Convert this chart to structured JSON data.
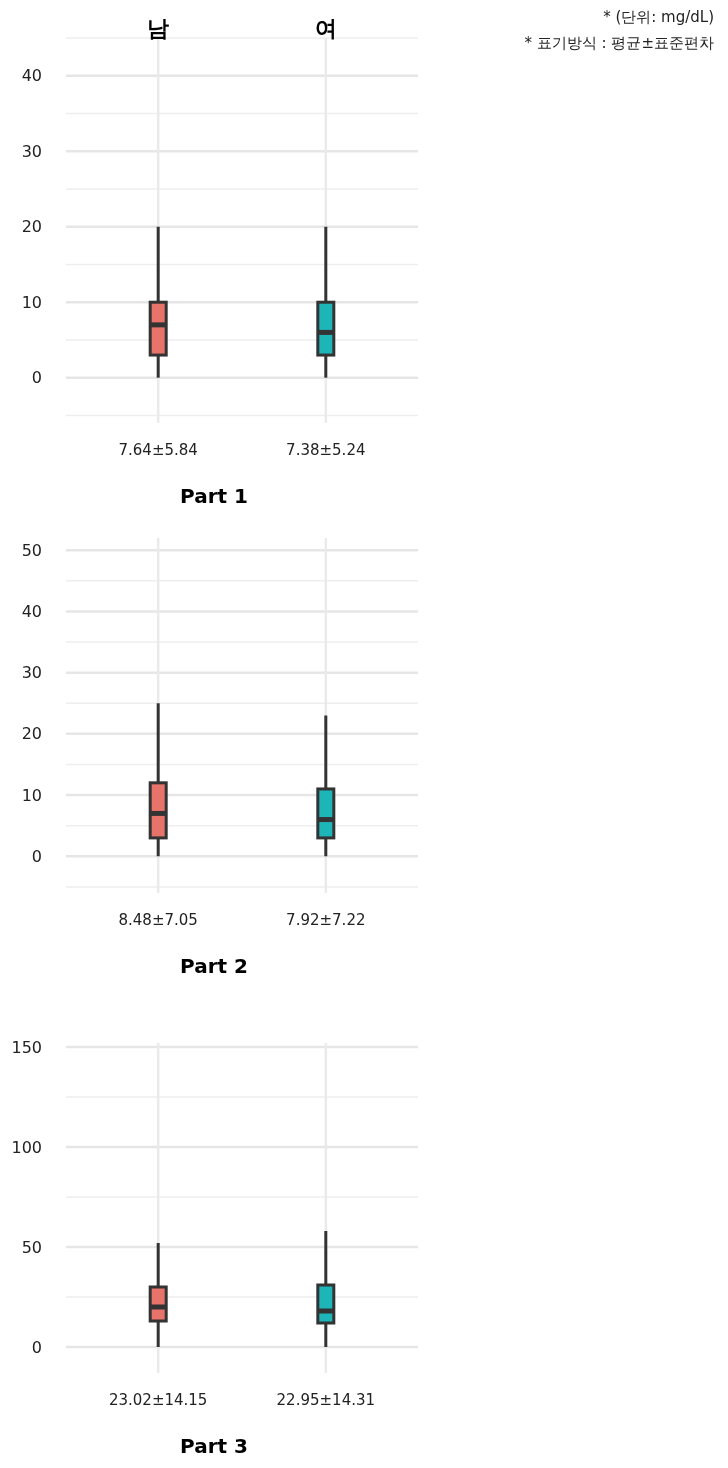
{
  "chart_data": [
    {
      "type": "box",
      "title": "Part 1",
      "categories": [
        "남",
        "여"
      ],
      "colors": [
        "#e8736a",
        "#1db5b8"
      ],
      "boxes": [
        {
          "low": 0,
          "q1": 3,
          "median": 7,
          "q3": 10,
          "high": 20
        },
        {
          "low": 0,
          "q1": 3,
          "median": 6,
          "q3": 10,
          "high": 20
        }
      ],
      "ylim": [
        -6,
        45
      ],
      "yticks": [
        0,
        10,
        20,
        30,
        40
      ],
      "grid": true,
      "annotations": [
        "7.64±5.84",
        "7.38±5.24",
        "* (단위: mg/dL)",
        "* 표기방식 : 평균±표준편차"
      ]
    },
    {
      "type": "box",
      "title": "Part 2",
      "categories": [
        null,
        null
      ],
      "colors": [
        "#e8736a",
        "#1db5b8"
      ],
      "boxes": [
        {
          "low": 0,
          "q1": 3,
          "median": 7,
          "q3": 12,
          "high": 25
        },
        {
          "low": 0,
          "q1": 3,
          "median": 6,
          "q3": 11,
          "high": 23
        }
      ],
      "ylim": [
        -6,
        52
      ],
      "yticks": [
        0,
        10,
        20,
        30,
        40,
        50
      ],
      "grid": true,
      "annotations": [
        "8.48±7.05",
        "7.92±7.22"
      ]
    },
    {
      "type": "box",
      "title": "Part 3",
      "categories": [
        null,
        null
      ],
      "colors": [
        "#e8736a",
        "#1db5b8"
      ],
      "boxes": [
        {
          "low": 0,
          "q1": 13,
          "median": 20,
          "q3": 30,
          "high": 52
        },
        {
          "low": 0,
          "q1": 12,
          "median": 18,
          "q3": 31,
          "high": 58
        }
      ],
      "ylim": [
        -13,
        152
      ],
      "yticks": [
        0,
        50,
        100,
        150
      ],
      "grid": true,
      "annotations": [
        "23.02±14.15",
        "22.95±14.31"
      ]
    }
  ]
}
